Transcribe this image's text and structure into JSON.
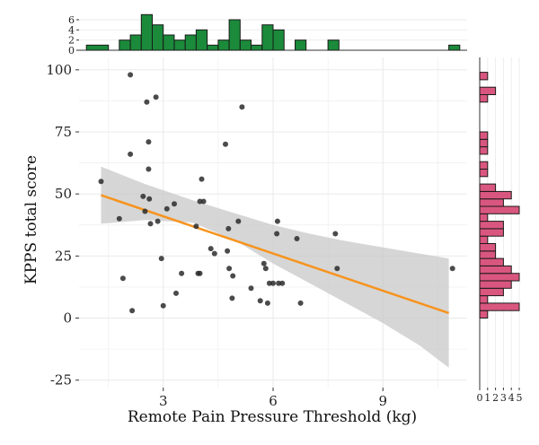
{
  "chart_data": {
    "type": "scatter",
    "title": "",
    "xlabel": "Remote Pain Pressure Threshold (kg)",
    "ylabel": "KPPS total score",
    "xlim": [
      0.7,
      11.3
    ],
    "ylim": [
      -28,
      105
    ],
    "x_ticks": [
      3,
      6,
      9
    ],
    "x_tick_labels": [
      "3",
      "6",
      "9"
    ],
    "y_ticks": [
      -25,
      0,
      25,
      50,
      75,
      100
    ],
    "y_tick_labels": [
      "-25",
      "0",
      "25",
      "50",
      "75",
      "100"
    ],
    "grid": true,
    "colors": {
      "points": "#2b2b2b",
      "fit_line": "#f7931e",
      "confidence_band": "#c8c8c8",
      "x_hist_fill": "#1b8a3a",
      "y_hist_fill": "#d9577f",
      "grid": "#ebebeb"
    },
    "points": [
      {
        "x": 1.3,
        "y": 55
      },
      {
        "x": 1.8,
        "y": 40
      },
      {
        "x": 1.9,
        "y": 16
      },
      {
        "x": 2.1,
        "y": 98
      },
      {
        "x": 2.1,
        "y": 66
      },
      {
        "x": 2.15,
        "y": 3
      },
      {
        "x": 2.45,
        "y": 49
      },
      {
        "x": 2.5,
        "y": 43
      },
      {
        "x": 2.55,
        "y": 87
      },
      {
        "x": 2.6,
        "y": 71
      },
      {
        "x": 2.6,
        "y": 60
      },
      {
        "x": 2.62,
        "y": 48
      },
      {
        "x": 2.65,
        "y": 38
      },
      {
        "x": 2.8,
        "y": 89
      },
      {
        "x": 2.85,
        "y": 39
      },
      {
        "x": 2.95,
        "y": 24
      },
      {
        "x": 3.0,
        "y": 5
      },
      {
        "x": 3.1,
        "y": 44
      },
      {
        "x": 3.3,
        "y": 46
      },
      {
        "x": 3.35,
        "y": 10
      },
      {
        "x": 3.5,
        "y": 18
      },
      {
        "x": 3.9,
        "y": 37
      },
      {
        "x": 3.95,
        "y": 18
      },
      {
        "x": 4.0,
        "y": 18
      },
      {
        "x": 4.0,
        "y": 47
      },
      {
        "x": 4.05,
        "y": 56
      },
      {
        "x": 4.1,
        "y": 47
      },
      {
        "x": 4.3,
        "y": 28
      },
      {
        "x": 4.4,
        "y": 26
      },
      {
        "x": 4.7,
        "y": 70
      },
      {
        "x": 4.75,
        "y": 27
      },
      {
        "x": 4.78,
        "y": 36
      },
      {
        "x": 4.8,
        "y": 20
      },
      {
        "x": 4.9,
        "y": 17
      },
      {
        "x": 4.88,
        "y": 8
      },
      {
        "x": 5.05,
        "y": 39
      },
      {
        "x": 5.15,
        "y": 85
      },
      {
        "x": 5.4,
        "y": 12
      },
      {
        "x": 5.65,
        "y": 7
      },
      {
        "x": 5.75,
        "y": 22
      },
      {
        "x": 5.8,
        "y": 20
      },
      {
        "x": 5.85,
        "y": 6
      },
      {
        "x": 5.9,
        "y": 14
      },
      {
        "x": 6.0,
        "y": 14
      },
      {
        "x": 6.1,
        "y": 34
      },
      {
        "x": 6.12,
        "y": 39
      },
      {
        "x": 6.15,
        "y": 14
      },
      {
        "x": 6.25,
        "y": 14
      },
      {
        "x": 6.65,
        "y": 32
      },
      {
        "x": 6.75,
        "y": 6
      },
      {
        "x": 7.7,
        "y": 34
      },
      {
        "x": 7.75,
        "y": 20
      },
      {
        "x": 10.9,
        "y": 20
      }
    ],
    "fit_line": {
      "x": [
        1.3,
        10.8
      ],
      "y": [
        49.5,
        2
      ]
    },
    "confidence_band": {
      "x": [
        1.3,
        2.5,
        3.8,
        5.0,
        6.0,
        7.0,
        8.0,
        9.0,
        10.0,
        10.8
      ],
      "lower": [
        38,
        39.5,
        38.5,
        31,
        22,
        14,
        6,
        -2,
        -11,
        -20
      ],
      "upper": [
        61,
        54,
        47.5,
        42,
        37.5,
        34,
        31,
        28.5,
        26,
        24
      ]
    },
    "x_histogram": {
      "bin_edges": [
        0.9,
        1.5,
        1.8,
        2.1,
        2.4,
        2.7,
        3.0,
        3.3,
        3.6,
        3.9,
        4.2,
        4.5,
        4.8,
        5.1,
        5.4,
        5.7,
        6.0,
        6.3,
        6.6,
        6.9,
        7.5,
        7.8,
        8.1,
        10.8,
        11.1
      ],
      "counts": [
        1,
        0,
        2,
        3,
        7,
        5,
        3,
        2,
        3,
        4,
        1,
        2,
        6,
        2,
        1,
        5,
        4,
        0,
        2,
        0,
        2,
        0,
        0,
        1
      ],
      "axis_ticks": [
        0,
        2,
        4,
        6
      ],
      "axis_tick_labels": [
        "0",
        "2",
        "4",
        "6"
      ]
    },
    "y_histogram": {
      "bin_edges": [
        0,
        3,
        6,
        9,
        12,
        15,
        18,
        21,
        24,
        27,
        30,
        33,
        36,
        39,
        42,
        45,
        48,
        51,
        54,
        57,
        60,
        63,
        66,
        69,
        72,
        75,
        78,
        81,
        84,
        87,
        90,
        93,
        96,
        99
      ],
      "counts": [
        1,
        5,
        1,
        3,
        4,
        5,
        4,
        3,
        2,
        2,
        1,
        3,
        3,
        1,
        5,
        3,
        4,
        2,
        0,
        1,
        1,
        0,
        1,
        1,
        1,
        0,
        0,
        0,
        0,
        1,
        2,
        0,
        1
      ],
      "axis_ticks": [
        0,
        1,
        2,
        3,
        4,
        5
      ],
      "axis_tick_labels": [
        "0",
        "1",
        "2",
        "3",
        "4",
        "5"
      ]
    }
  }
}
